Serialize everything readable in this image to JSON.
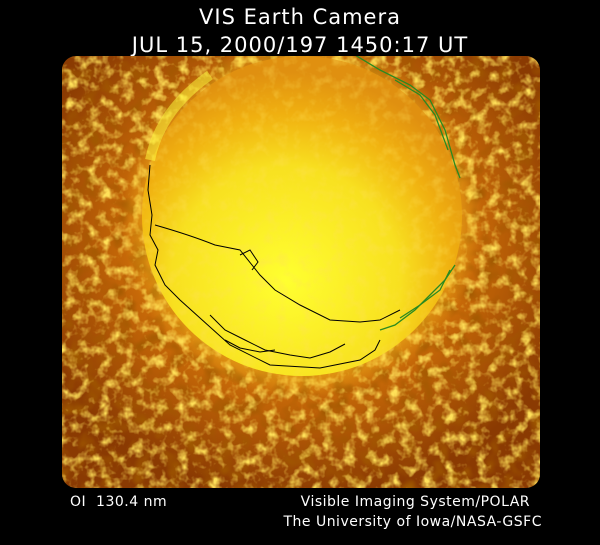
{
  "header": {
    "title": "VIS Earth Camera",
    "timestamp": "JUL 15, 2000/197 1450:17 UT"
  },
  "footer": {
    "filter": "OI  130.4 nm",
    "instrument": "Visible Imaging System/POLAR",
    "institution": "The University of Iowa/NASA-GSFC"
  }
}
